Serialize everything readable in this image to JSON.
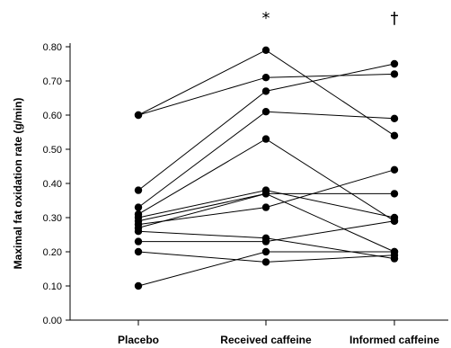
{
  "chart_data": {
    "type": "line",
    "title": "",
    "xlabel": "",
    "ylabel": "Maximal fat oxidation rate (g/min)",
    "categories": [
      "Placebo",
      "Received caffeine",
      "Informed caffeine"
    ],
    "ylim": [
      0,
      0.8
    ],
    "yticks": [
      "0.00",
      "0.10",
      "0.20",
      "0.30",
      "0.40",
      "0.50",
      "0.60",
      "0.70",
      "0.80"
    ],
    "grid": false,
    "significance_markers": [
      "",
      "*",
      "†"
    ],
    "series": [
      {
        "values": [
          0.6,
          0.79,
          0.54
        ]
      },
      {
        "values": [
          0.6,
          0.71,
          0.72
        ]
      },
      {
        "values": [
          0.38,
          0.67,
          0.75
        ]
      },
      {
        "values": [
          0.33,
          0.61,
          0.59
        ]
      },
      {
        "values": [
          0.31,
          0.53,
          0.29
        ]
      },
      {
        "values": [
          0.3,
          0.38,
          0.3
        ]
      },
      {
        "values": [
          0.29,
          0.37,
          0.37
        ]
      },
      {
        "values": [
          0.28,
          0.33,
          0.44
        ]
      },
      {
        "values": [
          0.26,
          0.24,
          0.18
        ]
      },
      {
        "values": [
          0.23,
          0.23,
          0.29
        ]
      },
      {
        "values": [
          0.2,
          0.17,
          0.19
        ]
      },
      {
        "values": [
          0.1,
          0.2,
          0.2
        ]
      },
      {
        "values": [
          0.27,
          0.37,
          0.2
        ]
      }
    ]
  }
}
